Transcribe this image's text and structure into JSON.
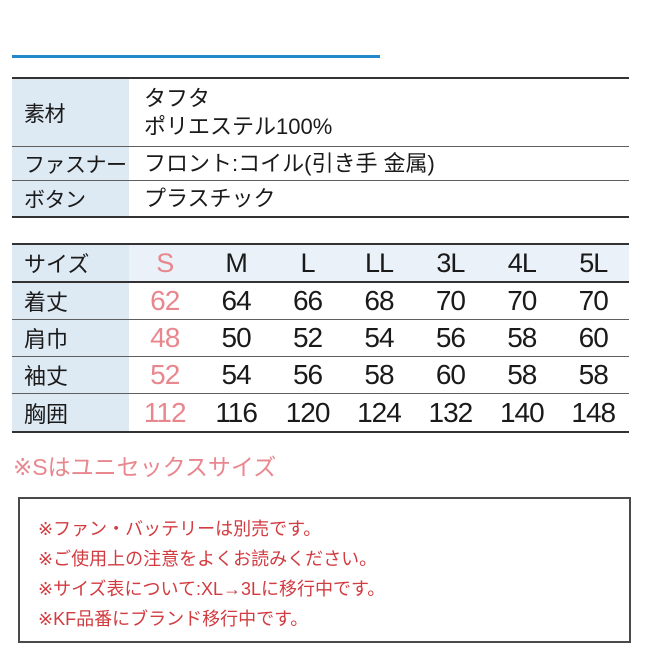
{
  "colors": {
    "pink": "#e9878e",
    "red": "#d23b40",
    "blue": "#2288c9",
    "label-bg": "#dde9f3",
    "header-bg": "#eaf1f8",
    "border-dark": "#333333"
  },
  "spec_table": {
    "rows": [
      {
        "label": "素材",
        "value_lines": [
          "タフタ",
          "ポリエステル100%"
        ]
      },
      {
        "label": "ファスナー",
        "value_lines": [
          "フロント:コイル(引き手 金属)"
        ]
      },
      {
        "label": "ボタン",
        "value_lines": [
          "プラスチック"
        ]
      }
    ]
  },
  "size_table": {
    "header_label": "サイズ",
    "sizes": [
      "S",
      "M",
      "L",
      "LL",
      "3L",
      "4L",
      "5L"
    ],
    "highlighted_size": "S",
    "rows": [
      {
        "label": "着丈",
        "values": [
          "62",
          "64",
          "66",
          "68",
          "70",
          "70",
          "70"
        ]
      },
      {
        "label": "肩巾",
        "values": [
          "48",
          "50",
          "52",
          "54",
          "56",
          "58",
          "60"
        ]
      },
      {
        "label": "袖丈",
        "values": [
          "52",
          "54",
          "56",
          "58",
          "60",
          "58",
          "58"
        ]
      },
      {
        "label": "胸囲",
        "values": [
          "112",
          "116",
          "120",
          "124",
          "132",
          "140",
          "148"
        ]
      }
    ]
  },
  "size_note": "※Sはユニセックスサイズ",
  "notice_box": {
    "lines": [
      "※ファン・バッテリーは別売です。",
      "※ご使用上の注意をよくお読みください。",
      "※サイズ表について:XL→3Lに移行中です。",
      "※KF品番にブランド移行中です。"
    ]
  }
}
